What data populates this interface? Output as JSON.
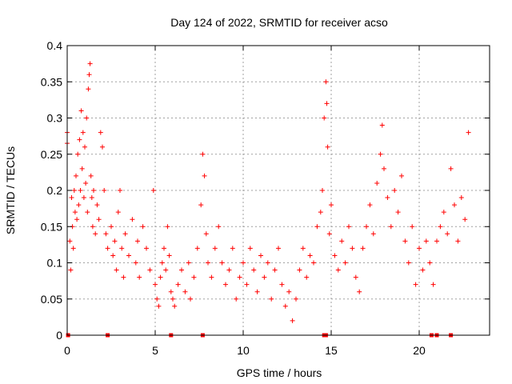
{
  "chart_data": {
    "type": "scatter",
    "title": "Day 124 of 2022, SRMTID for receiver acso",
    "xlabel": "GPS time / hours",
    "ylabel": "SRMTID / TECUs",
    "xlim": [
      0,
      24
    ],
    "ylim": [
      0,
      0.4
    ],
    "xticks": [
      0,
      5,
      10,
      15,
      20
    ],
    "yticks": [
      0,
      0.05,
      0.1,
      0.15,
      0.2,
      0.25,
      0.3,
      0.35,
      0.4
    ],
    "xtick_labels": [
      "0",
      "5",
      "10",
      "15",
      "20"
    ],
    "ytick_labels": [
      "0",
      "0.05",
      "0.1",
      "0.15",
      "0.2",
      "0.25",
      "0.3",
      "0.35",
      "0.4"
    ],
    "grid": true,
    "marker": "plus",
    "color": "#ff0000",
    "series": [
      {
        "name": "SRMTID",
        "points": [
          [
            0.0,
            0.28
          ],
          [
            0.0,
            0.265
          ],
          [
            0.15,
            0.13
          ],
          [
            0.2,
            0.09
          ],
          [
            0.25,
            0.19
          ],
          [
            0.3,
            0.15
          ],
          [
            0.35,
            0.12
          ],
          [
            0.4,
            0.2
          ],
          [
            0.45,
            0.17
          ],
          [
            0.5,
            0.22
          ],
          [
            0.55,
            0.16
          ],
          [
            0.6,
            0.25
          ],
          [
            0.65,
            0.18
          ],
          [
            0.7,
            0.27
          ],
          [
            0.75,
            0.2
          ],
          [
            0.8,
            0.31
          ],
          [
            0.85,
            0.23
          ],
          [
            0.9,
            0.28
          ],
          [
            0.95,
            0.19
          ],
          [
            1.0,
            0.26
          ],
          [
            1.05,
            0.21
          ],
          [
            1.1,
            0.3
          ],
          [
            1.15,
            0.17
          ],
          [
            1.2,
            0.34
          ],
          [
            1.25,
            0.36
          ],
          [
            1.3,
            0.375
          ],
          [
            1.35,
            0.22
          ],
          [
            1.4,
            0.19
          ],
          [
            1.45,
            0.15
          ],
          [
            1.5,
            0.2
          ],
          [
            1.6,
            0.14
          ],
          [
            1.7,
            0.18
          ],
          [
            1.8,
            0.16
          ],
          [
            1.9,
            0.28
          ],
          [
            2.0,
            0.26
          ],
          [
            2.1,
            0.2
          ],
          [
            2.2,
            0.14
          ],
          [
            2.3,
            0.12
          ],
          [
            2.5,
            0.15
          ],
          [
            2.6,
            0.11
          ],
          [
            2.7,
            0.13
          ],
          [
            2.8,
            0.09
          ],
          [
            2.9,
            0.17
          ],
          [
            3.0,
            0.2
          ],
          [
            3.1,
            0.12
          ],
          [
            3.2,
            0.08
          ],
          [
            3.3,
            0.14
          ],
          [
            3.5,
            0.11
          ],
          [
            3.7,
            0.16
          ],
          [
            3.9,
            0.1
          ],
          [
            4.0,
            0.13
          ],
          [
            4.1,
            0.08
          ],
          [
            4.3,
            0.15
          ],
          [
            4.5,
            0.12
          ],
          [
            4.7,
            0.09
          ],
          [
            4.9,
            0.2
          ],
          [
            5.0,
            0.07
          ],
          [
            5.1,
            0.05
          ],
          [
            5.2,
            0.04
          ],
          [
            5.3,
            0.08
          ],
          [
            5.4,
            0.1
          ],
          [
            5.5,
            0.12
          ],
          [
            5.6,
            0.09
          ],
          [
            5.7,
            0.15
          ],
          [
            5.8,
            0.11
          ],
          [
            5.9,
            0.06
          ],
          [
            6.0,
            0.05
          ],
          [
            6.1,
            0.04
          ],
          [
            6.3,
            0.07
          ],
          [
            6.5,
            0.09
          ],
          [
            6.7,
            0.06
          ],
          [
            6.9,
            0.1
          ],
          [
            7.0,
            0.05
          ],
          [
            7.2,
            0.08
          ],
          [
            7.4,
            0.12
          ],
          [
            7.6,
            0.18
          ],
          [
            7.7,
            0.25
          ],
          [
            7.8,
            0.22
          ],
          [
            7.9,
            0.14
          ],
          [
            8.0,
            0.1
          ],
          [
            8.2,
            0.08
          ],
          [
            8.4,
            0.12
          ],
          [
            8.6,
            0.15
          ],
          [
            8.8,
            0.1
          ],
          [
            9.0,
            0.07
          ],
          [
            9.2,
            0.09
          ],
          [
            9.4,
            0.12
          ],
          [
            9.6,
            0.05
          ],
          [
            9.8,
            0.08
          ],
          [
            10.0,
            0.1
          ],
          [
            10.2,
            0.07
          ],
          [
            10.4,
            0.12
          ],
          [
            10.6,
            0.09
          ],
          [
            10.8,
            0.06
          ],
          [
            11.0,
            0.11
          ],
          [
            11.2,
            0.08
          ],
          [
            11.4,
            0.1
          ],
          [
            11.6,
            0.05
          ],
          [
            11.8,
            0.09
          ],
          [
            12.0,
            0.12
          ],
          [
            12.2,
            0.07
          ],
          [
            12.4,
            0.04
          ],
          [
            12.6,
            0.06
          ],
          [
            12.8,
            0.02
          ],
          [
            13.0,
            0.05
          ],
          [
            13.2,
            0.09
          ],
          [
            13.4,
            0.12
          ],
          [
            13.6,
            0.08
          ],
          [
            13.8,
            0.11
          ],
          [
            14.0,
            0.1
          ],
          [
            14.2,
            0.15
          ],
          [
            14.4,
            0.17
          ],
          [
            14.5,
            0.2
          ],
          [
            14.6,
            0.3
          ],
          [
            14.7,
            0.35
          ],
          [
            14.75,
            0.32
          ],
          [
            14.8,
            0.26
          ],
          [
            14.9,
            0.14
          ],
          [
            15.0,
            0.18
          ],
          [
            15.2,
            0.11
          ],
          [
            15.4,
            0.09
          ],
          [
            15.6,
            0.13
          ],
          [
            15.8,
            0.1
          ],
          [
            16.0,
            0.15
          ],
          [
            16.2,
            0.12
          ],
          [
            16.4,
            0.08
          ],
          [
            16.6,
            0.06
          ],
          [
            16.8,
            0.12
          ],
          [
            17.0,
            0.15
          ],
          [
            17.2,
            0.18
          ],
          [
            17.4,
            0.14
          ],
          [
            17.6,
            0.21
          ],
          [
            17.8,
            0.25
          ],
          [
            17.9,
            0.29
          ],
          [
            18.0,
            0.23
          ],
          [
            18.2,
            0.19
          ],
          [
            18.4,
            0.15
          ],
          [
            18.6,
            0.2
          ],
          [
            18.8,
            0.17
          ],
          [
            19.0,
            0.22
          ],
          [
            19.2,
            0.13
          ],
          [
            19.4,
            0.1
          ],
          [
            19.6,
            0.15
          ],
          [
            19.8,
            0.07
          ],
          [
            20.0,
            0.12
          ],
          [
            20.2,
            0.09
          ],
          [
            20.4,
            0.13
          ],
          [
            20.6,
            0.1
          ],
          [
            20.8,
            0.07
          ],
          [
            21.0,
            0.13
          ],
          [
            21.2,
            0.15
          ],
          [
            21.4,
            0.17
          ],
          [
            21.6,
            0.14
          ],
          [
            21.8,
            0.23
          ],
          [
            22.0,
            0.18
          ],
          [
            22.2,
            0.13
          ],
          [
            22.4,
            0.19
          ],
          [
            22.6,
            0.16
          ],
          [
            22.8,
            0.28
          ]
        ],
        "zero_markers": [
          0.05,
          2.3,
          5.9,
          7.7,
          14.6,
          14.7,
          20.7,
          21.0,
          21.8
        ]
      }
    ]
  }
}
